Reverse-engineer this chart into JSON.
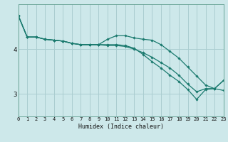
{
  "xlabel": "Humidex (Indice chaleur)",
  "ylabel": "",
  "bg_color": "#cde8ea",
  "line_color": "#1a7a6e",
  "grid_color": "#aacdd0",
  "x_ticks": [
    0,
    1,
    2,
    3,
    4,
    5,
    6,
    7,
    8,
    9,
    10,
    11,
    12,
    13,
    14,
    15,
    16,
    17,
    18,
    19,
    20,
    21,
    22,
    23
  ],
  "y_ticks": [
    3,
    4
  ],
  "ylim": [
    2.5,
    5.0
  ],
  "xlim": [
    0,
    23
  ],
  "series": [
    [
      4.75,
      4.27,
      4.27,
      4.22,
      4.2,
      4.18,
      4.13,
      4.1,
      4.1,
      4.1,
      4.22,
      4.3,
      4.3,
      4.25,
      4.22,
      4.2,
      4.1,
      3.95,
      3.8,
      3.6,
      3.4,
      3.2,
      3.12,
      3.08
    ],
    [
      4.75,
      4.27,
      4.27,
      4.22,
      4.2,
      4.18,
      4.13,
      4.1,
      4.1,
      4.1,
      4.1,
      4.1,
      4.08,
      4.02,
      3.88,
      3.72,
      3.58,
      3.42,
      3.28,
      3.1,
      2.88,
      3.1,
      3.12,
      3.3
    ],
    [
      4.75,
      4.27,
      4.27,
      4.22,
      4.2,
      4.18,
      4.13,
      4.1,
      4.1,
      4.1,
      4.08,
      4.08,
      4.06,
      4.0,
      3.92,
      3.82,
      3.7,
      3.58,
      3.42,
      3.22,
      3.05,
      3.12,
      3.12,
      3.3
    ]
  ]
}
